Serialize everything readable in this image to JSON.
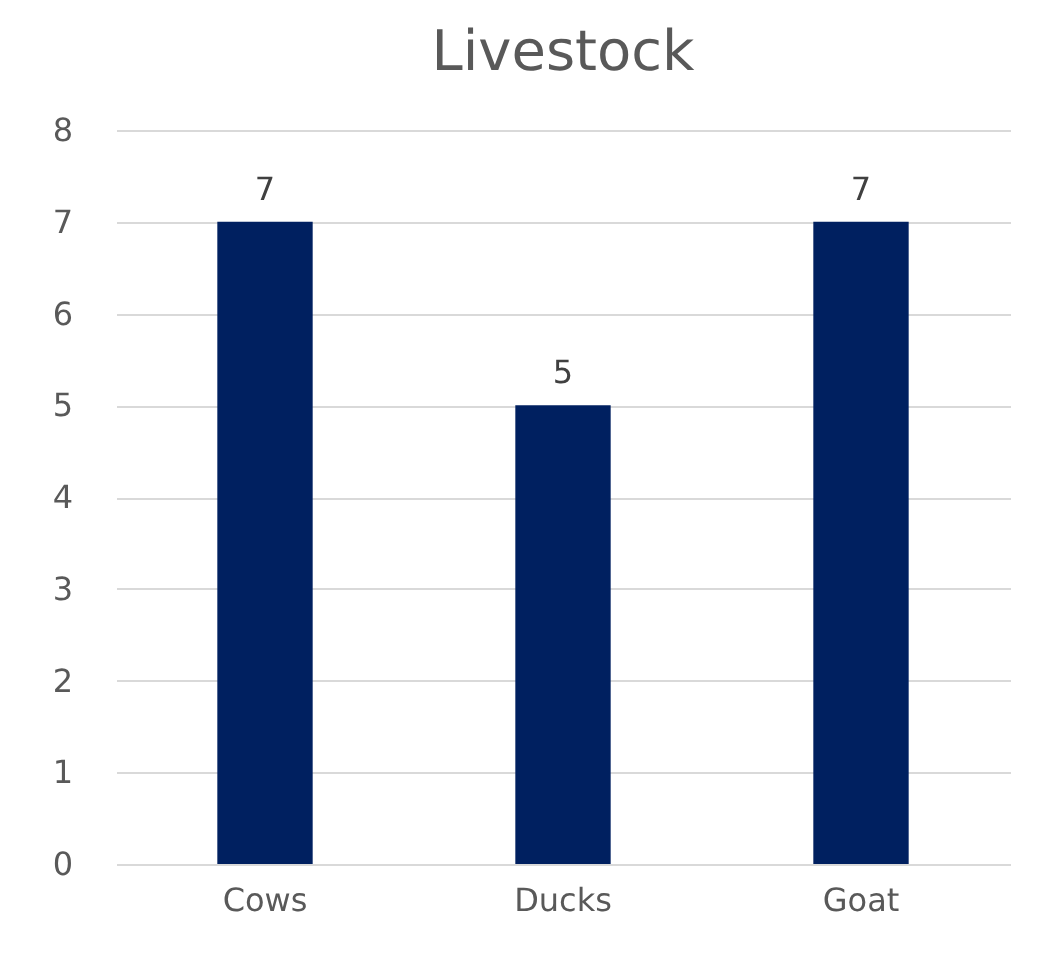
{
  "chart_data": {
    "type": "bar",
    "title": "Livestock",
    "categories": [
      "Cows",
      "Ducks",
      "Goat"
    ],
    "values": [
      7,
      5,
      7
    ],
    "color": "#002060",
    "ylim": [
      0,
      8
    ],
    "yticks": [
      0,
      1,
      2,
      3,
      4,
      5,
      6,
      7,
      8
    ],
    "grid": "y",
    "data_labels": true
  }
}
